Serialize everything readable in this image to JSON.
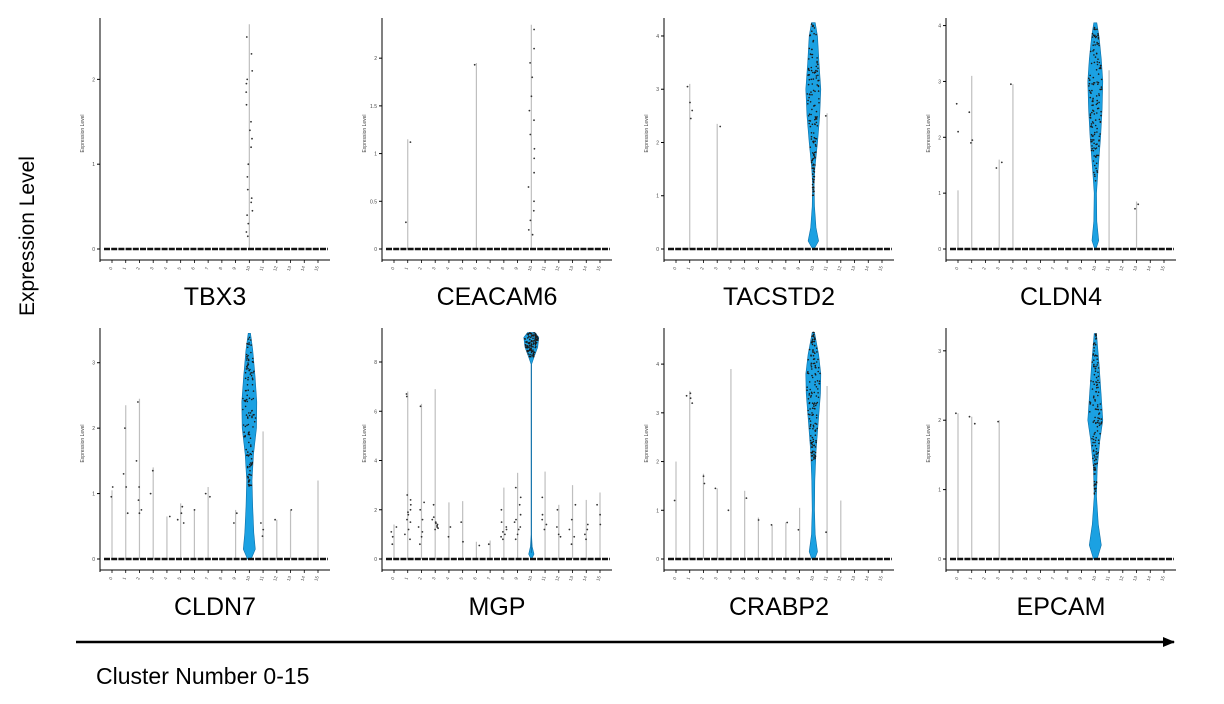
{
  "figure": {
    "y_axis_label": "Expression Level",
    "x_axis_label": "Cluster Number 0-15",
    "panel_axis_label": "Expression Level"
  },
  "colors": {
    "violin_fill": "#1ba1e2",
    "violin_stroke": "#0b6fa8",
    "line": "#bfbfbf",
    "point": "#333333",
    "axis": "#000000"
  },
  "chart_data": [
    {
      "type": "violin",
      "gene": "TBX3",
      "x": [
        0,
        1,
        2,
        3,
        4,
        5,
        6,
        7,
        8,
        9,
        10,
        11,
        12,
        13,
        14,
        15
      ],
      "ylim": [
        0,
        2.7
      ],
      "yticks": [
        0,
        1,
        2
      ],
      "max": {
        "10": 2.65
      },
      "points": [
        [
          10,
          2.5
        ],
        [
          10,
          2.3
        ],
        [
          10,
          2.1
        ],
        [
          10,
          1.95
        ],
        [
          10,
          1.85
        ],
        [
          10,
          1.7
        ],
        [
          10,
          1.5
        ],
        [
          10,
          1.4
        ],
        [
          10,
          1.3
        ],
        [
          10,
          1.2
        ],
        [
          10,
          1.0
        ],
        [
          10,
          0.85
        ],
        [
          10,
          0.7
        ],
        [
          10,
          0.55
        ],
        [
          10,
          0.45
        ],
        [
          10,
          0.4
        ],
        [
          10,
          0.3
        ],
        [
          10,
          0.2
        ],
        [
          10,
          0.15
        ],
        [
          10,
          2.0
        ],
        [
          10,
          0.6
        ]
      ],
      "violins": []
    },
    {
      "type": "violin",
      "gene": "CEACAM6",
      "x": [
        0,
        1,
        2,
        3,
        4,
        5,
        6,
        7,
        8,
        9,
        10,
        11,
        12,
        13,
        14,
        15
      ],
      "ylim": [
        0,
        2.4
      ],
      "yticks": [
        0,
        0.5,
        1.0,
        1.5,
        2.0
      ],
      "max": {
        "1": 1.15,
        "6": 1.95,
        "10": 2.35
      },
      "points": [
        [
          1,
          0.28
        ],
        [
          1,
          1.12
        ],
        [
          6,
          1.93
        ],
        [
          10,
          2.3
        ],
        [
          10,
          2.1
        ],
        [
          10,
          1.95
        ],
        [
          10,
          1.8
        ],
        [
          10,
          1.6
        ],
        [
          10,
          1.45
        ],
        [
          10,
          1.35
        ],
        [
          10,
          1.2
        ],
        [
          10,
          1.05
        ],
        [
          10,
          0.95
        ],
        [
          10,
          0.8
        ],
        [
          10,
          0.65
        ],
        [
          10,
          0.5
        ],
        [
          10,
          0.4
        ],
        [
          10,
          0.3
        ],
        [
          10,
          0.2
        ],
        [
          10,
          0.15
        ]
      ],
      "violins": []
    },
    {
      "type": "violin",
      "gene": "TACSTD2",
      "x": [
        0,
        1,
        2,
        3,
        4,
        5,
        6,
        7,
        8,
        9,
        10,
        11,
        12,
        13,
        14,
        15
      ],
      "ylim": [
        0,
        4.3
      ],
      "yticks": [
        0,
        1,
        2,
        3,
        4
      ],
      "max": {
        "1": 3.1,
        "3": 2.35,
        "10": 4.25,
        "11": 2.55
      },
      "points": [
        [
          1,
          3.05
        ],
        [
          1,
          2.75
        ],
        [
          1,
          2.45
        ],
        [
          1,
          2.6
        ],
        [
          3,
          2.3
        ],
        [
          11,
          2.5
        ]
      ],
      "violins": [
        {
          "cluster": 10,
          "max": 4.25,
          "profile": [
            [
              0,
              0.1
            ],
            [
              0.15,
              0.7
            ],
            [
              0.4,
              0.35
            ],
            [
              0.8,
              0.15
            ],
            [
              1.2,
              0.1
            ],
            [
              1.5,
              0.2
            ],
            [
              2.0,
              0.55
            ],
            [
              2.5,
              0.85
            ],
            [
              3.0,
              1.0
            ],
            [
              3.5,
              0.75
            ],
            [
              4.0,
              0.55
            ],
            [
              4.25,
              0.25
            ]
          ],
          "npoints": 150,
          "point_range": [
            1.0,
            4.25
          ]
        }
      ]
    },
    {
      "type": "violin",
      "gene": "CLDN4",
      "x": [
        0,
        1,
        2,
        3,
        4,
        5,
        6,
        7,
        8,
        9,
        10,
        11,
        12,
        13,
        14,
        15
      ],
      "ylim": [
        0,
        4.1
      ],
      "yticks": [
        0,
        1,
        2,
        3,
        4
      ],
      "max": {
        "0": 1.05,
        "1": 3.1,
        "3": 1.6,
        "4": 2.95,
        "10": 4.05,
        "11": 3.2,
        "13": 0.85
      },
      "points": [
        [
          0,
          2.6
        ],
        [
          0,
          2.1
        ],
        [
          1,
          2.45
        ],
        [
          1,
          1.9
        ],
        [
          1,
          1.95
        ],
        [
          3,
          1.45
        ],
        [
          3,
          1.55
        ],
        [
          4,
          2.95
        ],
        [
          13,
          0.8
        ],
        [
          13,
          0.72
        ]
      ],
      "violins": [
        {
          "cluster": 10,
          "max": 4.05,
          "profile": [
            [
              0,
              0.08
            ],
            [
              0.15,
              0.45
            ],
            [
              0.5,
              0.2
            ],
            [
              1.0,
              0.15
            ],
            [
              1.4,
              0.35
            ],
            [
              2.0,
              0.7
            ],
            [
              2.5,
              0.9
            ],
            [
              3.0,
              1.0
            ],
            [
              3.4,
              0.8
            ],
            [
              3.8,
              0.5
            ],
            [
              4.05,
              0.2
            ]
          ],
          "npoints": 150,
          "point_range": [
            1.2,
            4.05
          ]
        }
      ]
    },
    {
      "type": "violin",
      "gene": "CLDN7",
      "x": [
        0,
        1,
        2,
        3,
        4,
        5,
        6,
        7,
        8,
        9,
        10,
        11,
        12,
        13,
        14,
        15
      ],
      "ylim": [
        0,
        3.5
      ],
      "yticks": [
        0,
        1,
        2,
        3
      ],
      "max": {
        "0": 1.05,
        "1": 2.35,
        "2": 2.45,
        "3": 1.4,
        "4": 0.65,
        "5": 0.85,
        "6": 0.75,
        "7": 1.1,
        "9": 0.75,
        "10": 3.45,
        "11": 1.95,
        "12": 0.6,
        "13": 0.75,
        "15": 1.2
      },
      "points": [
        [
          0,
          0.95
        ],
        [
          0,
          1.1
        ],
        [
          1,
          2.0
        ],
        [
          1,
          1.3
        ],
        [
          1,
          1.1
        ],
        [
          1,
          0.7
        ],
        [
          2,
          2.4
        ],
        [
          2,
          1.5
        ],
        [
          2,
          1.1
        ],
        [
          2,
          0.9
        ],
        [
          2,
          0.75
        ],
        [
          2,
          0.7
        ],
        [
          3,
          1.35
        ],
        [
          3,
          1.0
        ],
        [
          4,
          0.65
        ],
        [
          5,
          0.7
        ],
        [
          5,
          0.55
        ],
        [
          5,
          0.6
        ],
        [
          5,
          0.8
        ],
        [
          6,
          0.75
        ],
        [
          7,
          1.0
        ],
        [
          7,
          0.95
        ],
        [
          9,
          0.7
        ],
        [
          9,
          0.55
        ],
        [
          11,
          0.45
        ],
        [
          11,
          0.55
        ],
        [
          11,
          0.35
        ],
        [
          12,
          0.6
        ],
        [
          13,
          0.75
        ]
      ],
      "violins": [
        {
          "cluster": 10,
          "max": 3.45,
          "profile": [
            [
              0,
              0.25
            ],
            [
              0.15,
              0.8
            ],
            [
              0.4,
              0.6
            ],
            [
              0.8,
              0.45
            ],
            [
              1.2,
              0.35
            ],
            [
              1.6,
              0.55
            ],
            [
              2.0,
              0.95
            ],
            [
              2.4,
              1.0
            ],
            [
              2.8,
              0.75
            ],
            [
              3.2,
              0.45
            ],
            [
              3.45,
              0.15
            ]
          ],
          "npoints": 130,
          "point_range": [
            1.1,
            3.4
          ]
        }
      ]
    },
    {
      "type": "violin",
      "gene": "MGP",
      "x": [
        0,
        1,
        2,
        3,
        4,
        5,
        6,
        7,
        8,
        9,
        10,
        11,
        12,
        13,
        14,
        15
      ],
      "ylim": [
        0,
        9.3
      ],
      "yticks": [
        0,
        2,
        4,
        6,
        8
      ],
      "max": {
        "0": 1.4,
        "1": 6.8,
        "2": 6.3,
        "3": 6.9,
        "4": 2.3,
        "5": 2.35,
        "6": 0.7,
        "7": 0.75,
        "8": 2.9,
        "9": 3.5,
        "10": 9.2,
        "11": 3.55,
        "12": 2.2,
        "13": 3.0,
        "14": 2.4,
        "15": 2.7
      },
      "points": [
        [
          0,
          1.3
        ],
        [
          0,
          0.9
        ],
        [
          0,
          0.6
        ],
        [
          0,
          1.1
        ],
        [
          1,
          6.6
        ],
        [
          1,
          6.7
        ],
        [
          1,
          2.2
        ],
        [
          1,
          1.9
        ],
        [
          1,
          1.6
        ],
        [
          1,
          1.8
        ],
        [
          1,
          1.2
        ],
        [
          1,
          1.0
        ],
        [
          1,
          2.4
        ],
        [
          1,
          2.0
        ],
        [
          1,
          1.5
        ],
        [
          1,
          0.8
        ],
        [
          1,
          2.6
        ],
        [
          2,
          6.2
        ],
        [
          2,
          2.0
        ],
        [
          2,
          1.3
        ],
        [
          2,
          0.9
        ],
        [
          2,
          0.6
        ],
        [
          2,
          1.6
        ],
        [
          2,
          2.3
        ],
        [
          2,
          1.1
        ],
        [
          3,
          1.6
        ],
        [
          3,
          1.4
        ],
        [
          3,
          1.3
        ],
        [
          3,
          1.5
        ],
        [
          3,
          1.2
        ],
        [
          3,
          1.7
        ],
        [
          3,
          1.35
        ],
        [
          3,
          1.45
        ],
        [
          3,
          1.25
        ],
        [
          3,
          2.2
        ],
        [
          4,
          1.3
        ],
        [
          4,
          0.9
        ],
        [
          5,
          1.5
        ],
        [
          5,
          0.7
        ],
        [
          6,
          0.55
        ],
        [
          7,
          0.6
        ],
        [
          8,
          1.5
        ],
        [
          8,
          1.2
        ],
        [
          8,
          1.0
        ],
        [
          8,
          0.8
        ],
        [
          8,
          1.3
        ],
        [
          8,
          2.0
        ],
        [
          8,
          1.1
        ],
        [
          8,
          0.9
        ],
        [
          9,
          2.5
        ],
        [
          9,
          2.2
        ],
        [
          9,
          1.8
        ],
        [
          9,
          1.5
        ],
        [
          9,
          1.2
        ],
        [
          9,
          1.0
        ],
        [
          9,
          0.8
        ],
        [
          9,
          1.6
        ],
        [
          9,
          1.3
        ],
        [
          9,
          2.9
        ],
        [
          11,
          1.8
        ],
        [
          11,
          1.4
        ],
        [
          11,
          1.2
        ],
        [
          11,
          1.6
        ],
        [
          11,
          2.5
        ],
        [
          12,
          2.0
        ],
        [
          12,
          1.3
        ],
        [
          12,
          1.0
        ],
        [
          12,
          0.9
        ],
        [
          13,
          1.6
        ],
        [
          13,
          1.2
        ],
        [
          13,
          0.9
        ],
        [
          13,
          0.6
        ],
        [
          13,
          2.2
        ],
        [
          14,
          1.4
        ],
        [
          14,
          1.0
        ],
        [
          14,
          0.8
        ],
        [
          14,
          1.2
        ],
        [
          15,
          1.8
        ],
        [
          15,
          1.4
        ],
        [
          15,
          2.2
        ]
      ],
      "violins": [
        {
          "cluster": 10,
          "max": 9.2,
          "profile": [
            [
              0,
              0.05
            ],
            [
              0.2,
              0.35
            ],
            [
              0.5,
              0.12
            ],
            [
              1.0,
              0.02
            ],
            [
              7.9,
              0.02
            ],
            [
              8.2,
              0.35
            ],
            [
              8.6,
              0.85
            ],
            [
              9.0,
              1.0
            ],
            [
              9.2,
              0.5
            ]
          ],
          "npoints": 120,
          "point_range": [
            8.2,
            9.2
          ],
          "fill_threshold": 0.25
        }
      ]
    },
    {
      "type": "violin",
      "gene": "CRABP2",
      "x": [
        0,
        1,
        2,
        3,
        4,
        5,
        6,
        7,
        8,
        9,
        10,
        11,
        12,
        13,
        14,
        15
      ],
      "ylim": [
        0,
        4.7
      ],
      "yticks": [
        0,
        1,
        2,
        3,
        4
      ],
      "max": {
        "0": 2.0,
        "1": 3.45,
        "2": 1.75,
        "3": 1.45,
        "4": 3.9,
        "5": 1.4,
        "6": 0.85,
        "7": 0.7,
        "8": 0.75,
        "9": 1.05,
        "10": 4.65,
        "11": 3.55,
        "12": 1.2
      },
      "points": [
        [
          0,
          1.2
        ],
        [
          1,
          3.4
        ],
        [
          1,
          3.3
        ],
        [
          1,
          3.2
        ],
        [
          1,
          3.35
        ],
        [
          2,
          1.7
        ],
        [
          2,
          1.55
        ],
        [
          3,
          1.45
        ],
        [
          4,
          1.0
        ],
        [
          5,
          1.25
        ],
        [
          6,
          0.8
        ],
        [
          7,
          0.7
        ],
        [
          8,
          0.75
        ],
        [
          9,
          0.6
        ],
        [
          11,
          0.55
        ]
      ],
      "violins": [
        {
          "cluster": 10,
          "max": 4.65,
          "profile": [
            [
              0,
              0.2
            ],
            [
              0.15,
              0.55
            ],
            [
              0.5,
              0.25
            ],
            [
              1.0,
              0.15
            ],
            [
              1.6,
              0.2
            ],
            [
              2.2,
              0.35
            ],
            [
              2.8,
              0.65
            ],
            [
              3.4,
              0.95
            ],
            [
              3.8,
              1.0
            ],
            [
              4.2,
              0.7
            ],
            [
              4.65,
              0.15
            ]
          ],
          "npoints": 150,
          "point_range": [
            2.0,
            4.65
          ]
        }
      ]
    },
    {
      "type": "violin",
      "gene": "EPCAM",
      "x": [
        0,
        1,
        2,
        3,
        4,
        5,
        6,
        7,
        8,
        9,
        10,
        11,
        12,
        13,
        14,
        15
      ],
      "ylim": [
        0,
        3.3
      ],
      "yticks": [
        0,
        1,
        2,
        3
      ],
      "max": {
        "0": 2.1,
        "1": 2.05,
        "3": 2.0,
        "10": 3.25
      },
      "points": [
        [
          0,
          2.1
        ],
        [
          1,
          2.05
        ],
        [
          1,
          1.95
        ],
        [
          3,
          1.98
        ]
      ],
      "violins": [
        {
          "cluster": 10,
          "max": 3.25,
          "profile": [
            [
              0,
              0.25
            ],
            [
              0.2,
              0.8
            ],
            [
              0.5,
              0.4
            ],
            [
              0.9,
              0.15
            ],
            [
              1.3,
              0.25
            ],
            [
              1.7,
              0.6
            ],
            [
              2.0,
              1.0
            ],
            [
              2.4,
              0.75
            ],
            [
              2.8,
              0.5
            ],
            [
              3.25,
              0.15
            ]
          ],
          "npoints": 140,
          "point_range": [
            0.9,
            3.25
          ]
        }
      ]
    }
  ]
}
